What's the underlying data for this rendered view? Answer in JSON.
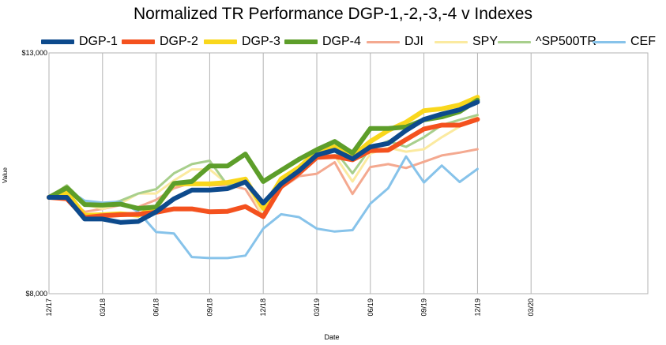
{
  "chart_data": {
    "type": "line",
    "title": "Normalized TR Performance DGP-1,-2,-3,-4 v Indexes",
    "xlabel": "Date",
    "ylabel": "Value",
    "ylim": [
      8000,
      13000
    ],
    "y_ticks": [
      "$8,000",
      "$13,000"
    ],
    "x_ticks": [
      "12/17",
      "03/18",
      "06/18",
      "09/18",
      "12/18",
      "03/19",
      "06/19",
      "09/19",
      "12/19",
      "03/20"
    ],
    "x": [
      "12/17",
      "01/18",
      "02/18",
      "03/18",
      "04/18",
      "05/18",
      "06/18",
      "07/18",
      "08/18",
      "09/18",
      "10/18",
      "11/18",
      "12/18",
      "01/19",
      "02/19",
      "03/19",
      "04/19",
      "05/19",
      "06/19",
      "07/19",
      "08/19",
      "09/19",
      "10/19",
      "11/19",
      "12/19"
    ],
    "legend_position": "top",
    "grid": true,
    "series": [
      {
        "name": "DGP-1",
        "color": "#0d4a8c",
        "width": 6,
        "values": [
          10000,
          10000,
          9550,
          9550,
          9480,
          9500,
          9700,
          9970,
          10150,
          10150,
          10180,
          10320,
          9880,
          10280,
          10550,
          10880,
          10980,
          10800,
          11050,
          11120,
          11390,
          11620,
          11730,
          11820,
          11980
        ]
      },
      {
        "name": "DGP-2",
        "color": "#f4511e",
        "width": 6,
        "values": [
          10000,
          9970,
          9580,
          9620,
          9640,
          9650,
          9690,
          9760,
          9760,
          9700,
          9710,
          9810,
          9600,
          10220,
          10500,
          10830,
          10850,
          10780,
          10970,
          10980,
          11200,
          11420,
          11500,
          11500,
          11620
        ]
      },
      {
        "name": "DGP-3",
        "color": "#f9d71c",
        "width": 6,
        "values": [
          10000,
          10100,
          9630,
          9640,
          9660,
          9630,
          9800,
          10280,
          10280,
          10280,
          10310,
          10380,
          9770,
          10380,
          10620,
          10950,
          11050,
          10850,
          11160,
          11390,
          11560,
          11800,
          11840,
          11920,
          12080
        ]
      },
      {
        "name": "DGP-4",
        "color": "#5d9e2a",
        "width": 6,
        "values": [
          10000,
          10200,
          9850,
          9840,
          9860,
          9770,
          9800,
          10290,
          10330,
          10650,
          10650,
          10900,
          10330,
          10560,
          10790,
          10990,
          11160,
          10920,
          11430,
          11430,
          11460,
          11610,
          11670,
          11780,
          12020
        ]
      },
      {
        "name": "DJI",
        "color": "#f4a990",
        "width": 3,
        "values": [
          10000,
          10000,
          9700,
          9760,
          9840,
          9800,
          9950,
          10190,
          10300,
          10250,
          10260,
          10170,
          9590,
          10190,
          10440,
          10490,
          10730,
          10070,
          10630,
          10690,
          10610,
          10740,
          10870,
          10930,
          11000
        ]
      },
      {
        "name": "SPY",
        "color": "#fbeaa0",
        "width": 3,
        "values": [
          10000,
          10250,
          9850,
          9760,
          9870,
          10080,
          10080,
          10350,
          10580,
          10580,
          10280,
          10330,
          9600,
          10240,
          10470,
          10830,
          10870,
          10330,
          10910,
          11030,
          10950,
          11000,
          11250,
          11470,
          11700
        ]
      },
      {
        "name": "^SP500TR",
        "color": "#a8cf8c",
        "width": 3,
        "values": [
          10000,
          10250,
          9880,
          9830,
          9930,
          10080,
          10170,
          10500,
          10690,
          10760,
          10250,
          10330,
          9750,
          10290,
          10550,
          10840,
          10980,
          10500,
          11020,
          11170,
          11050,
          11250,
          11500,
          11610,
          11710
        ]
      },
      {
        "name": "CEF",
        "color": "#87c3ea",
        "width": 3,
        "values": [
          10000,
          10170,
          9930,
          9890,
          9910,
          9700,
          9280,
          9250,
          8760,
          8740,
          8740,
          8790,
          9350,
          9650,
          9590,
          9350,
          9290,
          9320,
          9870,
          10190,
          10850,
          10310,
          10660,
          10320,
          10590
        ]
      }
    ]
  }
}
